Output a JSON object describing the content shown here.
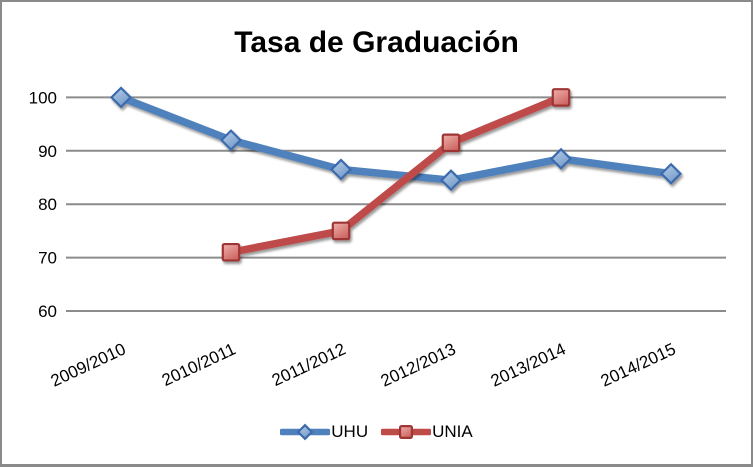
{
  "chart_data": {
    "type": "line",
    "title": "Tasa de Graduación",
    "xlabel": "",
    "ylabel": "",
    "categories": [
      "2009/2010",
      "2010/2011",
      "2011/2012",
      "2012/2013",
      "2013/2014",
      "2014/2015"
    ],
    "series": [
      {
        "name": "UHU",
        "marker": "diamond",
        "line_color": "#4F81BD",
        "marker_fill": "#7FA8D9",
        "marker_stroke": "#3A6BAD",
        "values": [
          100,
          92,
          86.5,
          84.5,
          88.5,
          85.7
        ]
      },
      {
        "name": "UNIA",
        "marker": "square",
        "line_color": "#BE4B48",
        "marker_fill": "#E0706A",
        "marker_stroke": "#9E3634",
        "values": [
          null,
          71,
          75,
          91.5,
          100,
          null
        ]
      }
    ],
    "ylim": [
      60,
      100
    ],
    "yticks": [
      60,
      70,
      80,
      90,
      100
    ],
    "grid": true,
    "gridline_color": "#8C8C8C",
    "axis_text_color": "#000000",
    "border_color": "#8A8A8A",
    "background_color": "#FFFFFF",
    "legend_position": "bottom",
    "x_label_rotation_deg": -25
  }
}
